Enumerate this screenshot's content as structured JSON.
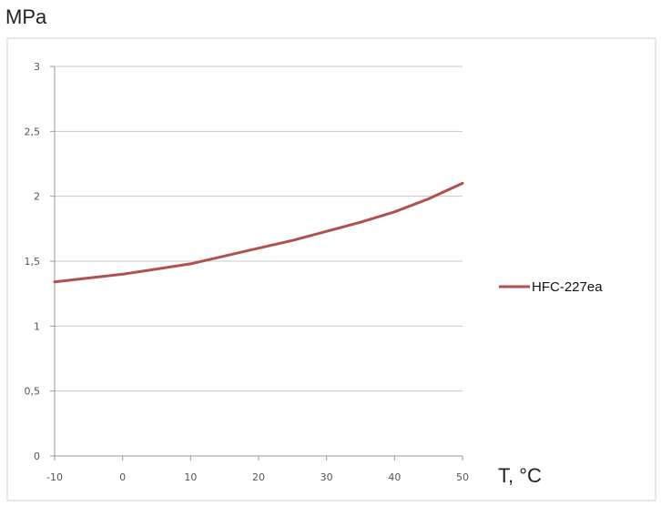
{
  "chart_data": {
    "type": "line",
    "ylabel": "MPa",
    "xlabel": "T, °C",
    "x": [
      -10,
      -5,
      0,
      5,
      10,
      15,
      20,
      25,
      30,
      35,
      40,
      45,
      50
    ],
    "series": [
      {
        "name": "HFC-227ea",
        "color": "#b05050",
        "values": [
          1.34,
          1.37,
          1.4,
          1.44,
          1.48,
          1.54,
          1.6,
          1.66,
          1.73,
          1.8,
          1.88,
          1.98,
          2.1
        ]
      }
    ],
    "xlim": [
      -10,
      50
    ],
    "ylim": [
      0,
      3
    ],
    "x_ticks": [
      -10,
      0,
      10,
      20,
      30,
      40,
      50
    ],
    "x_tick_labels": [
      "-10",
      "0",
      "10",
      "20",
      "30",
      "40",
      "50"
    ],
    "y_ticks": [
      0,
      0.5,
      1,
      1.5,
      2,
      2.5,
      3
    ],
    "y_tick_labels": [
      "0",
      "0,5",
      "1",
      "1,5",
      "2",
      "2,5",
      "3"
    ],
    "grid": true,
    "legend": "right"
  }
}
